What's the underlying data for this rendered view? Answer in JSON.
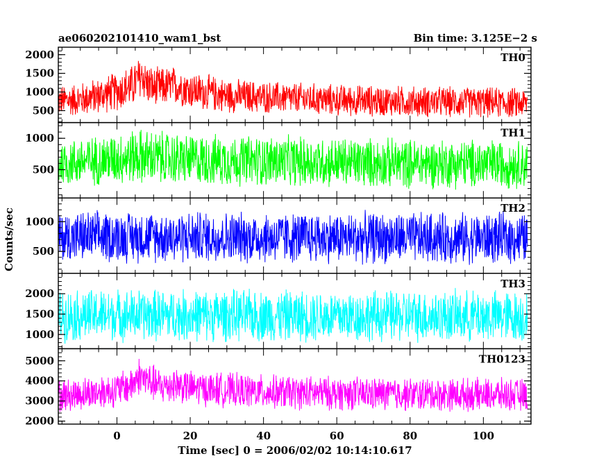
{
  "chart_data": {
    "type": "line",
    "title_left": "ae060202101410_wam1_bst",
    "title_right": "Bin time: 3.125E−2 s",
    "xlabel": "Time [sec] 0 = 2006/02/02 10:14:10.617",
    "ylabel": "Counts/sec",
    "xlim": [
      -16,
      113
    ],
    "x_ticks": [
      0,
      20,
      40,
      60,
      80,
      100
    ],
    "x_range_data": [
      -16,
      112
    ],
    "panels": [
      {
        "name": "TH0",
        "color": "#ff0000",
        "ylim": [
          180,
          2200
        ],
        "y_ticks": [
          500,
          1000,
          1500,
          2000
        ],
        "baseline": [
          [
            -16,
            760
          ],
          [
            -10,
            800
          ],
          [
            -5,
            900
          ],
          [
            0,
            1020
          ],
          [
            4,
            1150
          ],
          [
            6,
            1350
          ],
          [
            7,
            1450
          ],
          [
            8,
            1250
          ],
          [
            10,
            1100
          ],
          [
            16,
            1180
          ],
          [
            20,
            1050
          ],
          [
            30,
            900
          ],
          [
            40,
            860
          ],
          [
            60,
            780
          ],
          [
            80,
            740
          ],
          [
            100,
            720
          ],
          [
            112,
            700
          ]
        ],
        "spread": [
          [
            -16,
            900
          ],
          [
            -10,
            1000
          ],
          [
            0,
            1150
          ],
          [
            6,
            1350
          ],
          [
            10,
            1200
          ],
          [
            20,
            1100
          ],
          [
            40,
            950
          ],
          [
            112,
            900
          ]
        ]
      },
      {
        "name": "TH1",
        "color": "#00ff00",
        "ylim": [
          50,
          1250
        ],
        "y_ticks": [
          500,
          1000
        ],
        "baseline": [
          [
            -16,
            600
          ],
          [
            -5,
            650
          ],
          [
            0,
            680
          ],
          [
            6,
            720
          ],
          [
            10,
            690
          ],
          [
            20,
            660
          ],
          [
            40,
            640
          ],
          [
            60,
            620
          ],
          [
            80,
            600
          ],
          [
            112,
            590
          ]
        ],
        "spread": [
          [
            -16,
            820
          ],
          [
            0,
            900
          ],
          [
            6,
            980
          ],
          [
            20,
            900
          ],
          [
            112,
            850
          ]
        ]
      },
      {
        "name": "TH2",
        "color": "#0000ff",
        "ylim": [
          130,
          1400
        ],
        "y_ticks": [
          500,
          1000
        ],
        "baseline": [
          [
            -16,
            740
          ],
          [
            0,
            750
          ],
          [
            20,
            745
          ],
          [
            40,
            735
          ],
          [
            60,
            730
          ],
          [
            80,
            725
          ],
          [
            112,
            720
          ]
        ],
        "spread": [
          [
            -16,
            950
          ],
          [
            112,
            950
          ]
        ]
      },
      {
        "name": "TH3",
        "color": "#00ffff",
        "ylim": [
          650,
          2500
        ],
        "y_ticks": [
          1000,
          1500,
          2000
        ],
        "baseline": [
          [
            -16,
            1460
          ],
          [
            0,
            1480
          ],
          [
            20,
            1470
          ],
          [
            40,
            1460
          ],
          [
            60,
            1450
          ],
          [
            80,
            1450
          ],
          [
            112,
            1440
          ]
        ],
        "spread": [
          [
            -16,
            1400
          ],
          [
            112,
            1400
          ]
        ]
      },
      {
        "name": "TH0123",
        "color": "#ff00ff",
        "ylim": [
          1850,
          5600
        ],
        "y_ticks": [
          2000,
          3000,
          4000,
          5000
        ],
        "baseline": [
          [
            -16,
            3250
          ],
          [
            -10,
            3350
          ],
          [
            0,
            3550
          ],
          [
            4,
            3800
          ],
          [
            6,
            4250
          ],
          [
            8,
            4050
          ],
          [
            12,
            3700
          ],
          [
            16,
            3850
          ],
          [
            20,
            3650
          ],
          [
            40,
            3450
          ],
          [
            60,
            3380
          ],
          [
            80,
            3330
          ],
          [
            100,
            3320
          ],
          [
            112,
            3300
          ]
        ],
        "spread": [
          [
            -16,
            1800
          ],
          [
            0,
            1900
          ],
          [
            6,
            2100
          ],
          [
            20,
            1900
          ],
          [
            112,
            1800
          ]
        ]
      }
    ]
  }
}
